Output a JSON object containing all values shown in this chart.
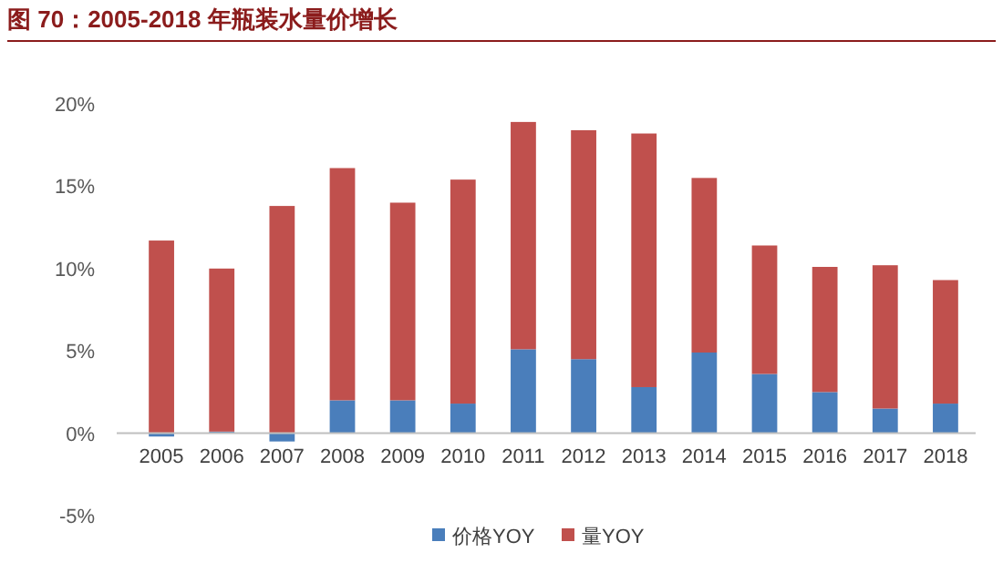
{
  "chart_data": {
    "type": "bar",
    "title": "图 70：2005-2018 年瓶装水量价增长",
    "stacked": true,
    "legend": "bottom",
    "marker": "square",
    "categories": [
      "2005",
      "2006",
      "2007",
      "2008",
      "2009",
      "2010",
      "2011",
      "2012",
      "2013",
      "2014",
      "2015",
      "2016",
      "2017",
      "2018"
    ],
    "ylim": [
      -5,
      20
    ],
    "yticks": [
      {
        "value": -5,
        "label": "-5%"
      },
      {
        "value": 0,
        "label": "0%"
      },
      {
        "value": 5,
        "label": "5%"
      },
      {
        "value": 10,
        "label": "10%"
      },
      {
        "value": 15,
        "label": "15%"
      },
      {
        "value": 20,
        "label": "20%"
      }
    ],
    "series": [
      {
        "name": "价格YOY",
        "color": "#4a7ebb",
        "values": [
          -0.2,
          0.1,
          -0.5,
          2.0,
          2.0,
          1.8,
          5.1,
          4.5,
          2.8,
          4.9,
          3.6,
          2.5,
          1.5,
          1.8
        ]
      },
      {
        "name": "量YOY",
        "color": "#c0504d",
        "values": [
          11.7,
          9.9,
          13.8,
          14.1,
          12.0,
          13.6,
          13.8,
          13.9,
          15.4,
          10.6,
          7.8,
          7.6,
          8.7,
          7.5
        ]
      }
    ]
  }
}
